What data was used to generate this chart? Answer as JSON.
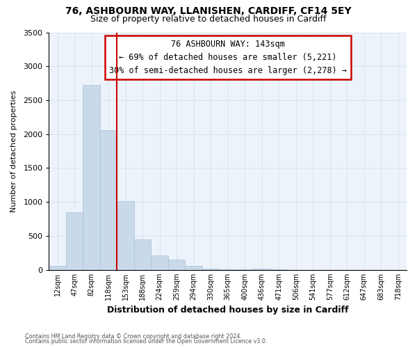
{
  "title_line1": "76, ASHBOURN WAY, LLANISHEN, CARDIFF, CF14 5EY",
  "title_line2": "Size of property relative to detached houses in Cardiff",
  "xlabel": "Distribution of detached houses by size in Cardiff",
  "ylabel": "Number of detached properties",
  "bar_color": "#c8d9ea",
  "bar_edge_color": "#a8c0d8",
  "categories": [
    "12sqm",
    "47sqm",
    "82sqm",
    "118sqm",
    "153sqm",
    "188sqm",
    "224sqm",
    "259sqm",
    "294sqm",
    "330sqm",
    "365sqm",
    "400sqm",
    "436sqm",
    "471sqm",
    "506sqm",
    "541sqm",
    "577sqm",
    "612sqm",
    "647sqm",
    "683sqm",
    "718sqm"
  ],
  "values": [
    55,
    850,
    2720,
    2060,
    1010,
    450,
    215,
    145,
    55,
    20,
    10,
    8,
    15,
    2,
    0,
    0,
    0,
    0,
    0,
    0,
    0
  ],
  "ylim": [
    0,
    3500
  ],
  "property_line_x": 4,
  "annotation_text": "76 ASHBOURN WAY: 143sqm\n← 69% of detached houses are smaller (5,221)\n30% of semi-detached houses are larger (2,278) →",
  "annotation_box_color": "#cc0000",
  "footnote1": "Contains HM Land Registry data © Crown copyright and database right 2024.",
  "footnote2": "Contains public sector information licensed under the Open Government Licence v3.0.",
  "grid_color": "#d8e4f0",
  "background_color": "#edf3fa",
  "title_fontsize": 10,
  "subtitle_fontsize": 9
}
